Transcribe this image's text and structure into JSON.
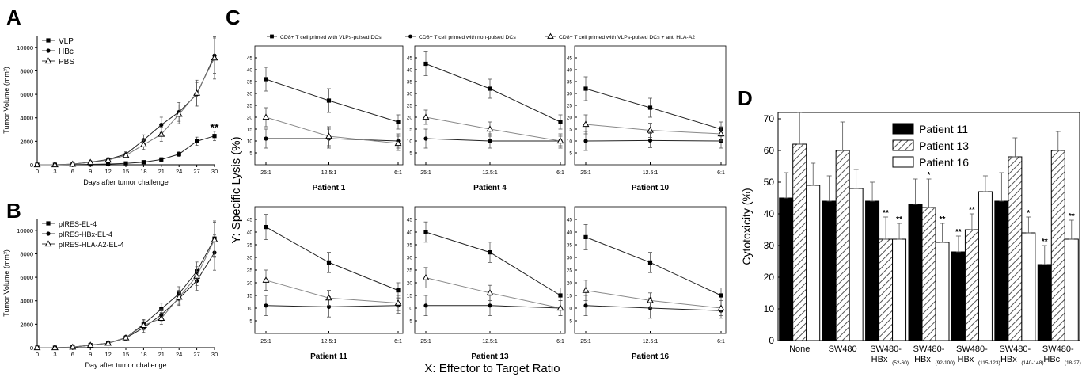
{
  "chart_data": [
    {
      "panel": "A",
      "type": "line",
      "xlabel": "Days after tumor challenge",
      "ylabel": "Tumor Volume (mm³)",
      "xlim": [
        0,
        30
      ],
      "ylim": [
        0,
        11000
      ],
      "xticks": [
        0,
        3,
        6,
        9,
        12,
        15,
        18,
        21,
        24,
        27,
        30
      ],
      "yticks": [
        0,
        2000,
        4000,
        6000,
        8000,
        10000
      ],
      "x": [
        0,
        3,
        6,
        9,
        12,
        15,
        18,
        21,
        24,
        27,
        30
      ],
      "series": [
        {
          "name": "VLP",
          "marker": "square",
          "values": [
            0,
            0,
            10,
            30,
            60,
            120,
            220,
            450,
            900,
            2000,
            2450
          ],
          "err": [
            0,
            0,
            20,
            40,
            60,
            80,
            100,
            150,
            200,
            350,
            400
          ]
        },
        {
          "name": "HBc",
          "marker": "circle",
          "values": [
            0,
            0,
            60,
            220,
            450,
            900,
            2100,
            3400,
            4500,
            6000,
            9300
          ],
          "err": [
            0,
            0,
            50,
            120,
            150,
            200,
            450,
            650,
            800,
            1000,
            1500
          ]
        },
        {
          "name": "PBS",
          "marker": "triangle",
          "values": [
            0,
            0,
            50,
            200,
            400,
            800,
            1700,
            2600,
            4300,
            6100,
            9100
          ],
          "err": [
            0,
            0,
            50,
            100,
            150,
            200,
            400,
            600,
            800,
            1100,
            1800
          ]
        }
      ],
      "annotation": "**",
      "legend": "top-left"
    },
    {
      "panel": "B",
      "type": "line",
      "xlabel": "Day after tumor challenge",
      "ylabel": "Tumor Volume (mm³)",
      "xlim": [
        0,
        30
      ],
      "ylim": [
        0,
        11000
      ],
      "xticks": [
        0,
        3,
        6,
        9,
        12,
        15,
        18,
        21,
        24,
        27,
        30
      ],
      "yticks": [
        0,
        2000,
        4000,
        6000,
        8000,
        10000
      ],
      "x": [
        0,
        3,
        6,
        9,
        12,
        15,
        18,
        21,
        24,
        27,
        30
      ],
      "series": [
        {
          "name": "pIRES-EL-4",
          "marker": "square",
          "values": [
            0,
            0,
            50,
            220,
            400,
            850,
            2000,
            3300,
            4600,
            6500,
            9300
          ],
          "err": [
            0,
            0,
            40,
            100,
            150,
            200,
            400,
            500,
            600,
            800,
            1500
          ]
        },
        {
          "name": "pIRES-HBx-EL-4",
          "marker": "circle",
          "values": [
            0,
            0,
            40,
            200,
            380,
            820,
            1700,
            2800,
            4200,
            5700,
            8100
          ],
          "err": [
            0,
            0,
            40,
            100,
            150,
            200,
            400,
            500,
            600,
            800,
            1500
          ]
        },
        {
          "name": "pIRES-HLA-A2-EL-4",
          "marker": "triangle",
          "values": [
            0,
            0,
            45,
            210,
            390,
            840,
            1900,
            2500,
            4300,
            6100,
            9200
          ],
          "err": [
            0,
            0,
            40,
            100,
            150,
            200,
            400,
            500,
            600,
            800,
            1500
          ]
        }
      ],
      "legend": "top-left"
    },
    {
      "panel": "C",
      "type": "line",
      "ylabel": "Y: Specific Lysis (%)",
      "xlabel": "X: Effector to Target Ratio",
      "categories": [
        "25:1",
        "12.5:1",
        "6:1"
      ],
      "ylim": [
        0,
        50
      ],
      "yticks": [
        5,
        10,
        15,
        20,
        25,
        30,
        35,
        40,
        45
      ],
      "legend_entries": [
        "CD8+ T cell primed with VLPs-pulsed DCs",
        "CD8+ T cell primed with non-pulsed DCs",
        "CD8+ T cell primed with VLPs-pulsed DCs + anti HLA-A2"
      ],
      "subplots": [
        {
          "title": "Patient 1",
          "series": [
            {
              "values": [
                36,
                27,
                18
              ],
              "err": [
                5,
                5,
                3
              ]
            },
            {
              "values": [
                11,
                11,
                10
              ],
              "err": [
                4,
                4,
                3
              ]
            },
            {
              "values": [
                20,
                12,
                9
              ],
              "err": [
                4,
                4,
                3
              ]
            }
          ]
        },
        {
          "title": "Patient 4",
          "series": [
            {
              "values": [
                42.5,
                32,
                18
              ],
              "err": [
                5,
                4,
                3
              ]
            },
            {
              "values": [
                11,
                10,
                10
              ],
              "err": [
                4,
                3,
                3
              ]
            },
            {
              "values": [
                20,
                15,
                10
              ],
              "err": [
                3,
                3,
                2
              ]
            }
          ]
        },
        {
          "title": "Patient 10",
          "series": [
            {
              "values": [
                32,
                24,
                15
              ],
              "err": [
                5,
                4,
                3
              ]
            },
            {
              "values": [
                10,
                10.2,
                10
              ],
              "err": [
                4,
                3,
                3
              ]
            },
            {
              "values": [
                17,
                14.5,
                13
              ],
              "err": [
                4,
                3,
                3
              ]
            }
          ]
        },
        {
          "title": "Patient 11",
          "series": [
            {
              "values": [
                42,
                28,
                17
              ],
              "err": [
                5,
                4,
                3
              ]
            },
            {
              "values": [
                11,
                10.5,
                11
              ],
              "err": [
                4,
                4,
                3
              ]
            },
            {
              "values": [
                21,
                14,
                12
              ],
              "err": [
                4,
                3,
                3
              ]
            }
          ]
        },
        {
          "title": "Patient 13",
          "series": [
            {
              "values": [
                40,
                32,
                15
              ],
              "err": [
                4,
                4,
                3
              ]
            },
            {
              "values": [
                11,
                11,
                10
              ],
              "err": [
                4,
                4,
                3
              ]
            },
            {
              "values": [
                22,
                16,
                10
              ],
              "err": [
                4,
                3,
                3
              ]
            }
          ]
        },
        {
          "title": "Patient 16",
          "series": [
            {
              "values": [
                38,
                28,
                15
              ],
              "err": [
                5,
                4,
                3
              ]
            },
            {
              "values": [
                11,
                10,
                9
              ],
              "err": [
                4,
                4,
                3
              ]
            },
            {
              "values": [
                17,
                13,
                10
              ],
              "err": [
                4,
                3,
                3
              ]
            }
          ]
        }
      ]
    },
    {
      "panel": "D",
      "type": "bar",
      "ylabel": "Cytotoxicity (%)",
      "ylim": [
        0,
        72
      ],
      "yticks": [
        0,
        10,
        20,
        30,
        40,
        50,
        60,
        70
      ],
      "categories": [
        {
          "line1": "None",
          "line2": "",
          "sub": ""
        },
        {
          "line1": "SW480",
          "line2": "",
          "sub": ""
        },
        {
          "line1": "SW480-",
          "line2": "HBx",
          "sub": "(52-60)"
        },
        {
          "line1": "SW480-",
          "line2": "HBx",
          "sub": "(92-100)"
        },
        {
          "line1": "SW480-",
          "line2": "HBx",
          "sub": "(115-123)"
        },
        {
          "line1": "SW480-",
          "line2": "HBx",
          "sub": "(140-148)"
        },
        {
          "line1": "SW480-",
          "line2": "HBc",
          "sub": "(18-27)"
        }
      ],
      "series": [
        {
          "name": "Patient 11",
          "fill": "#000000",
          "values": [
            45,
            44,
            44,
            43,
            28,
            44,
            24
          ],
          "err": [
            8,
            8,
            6,
            8,
            5,
            9,
            6
          ],
          "stars": [
            "",
            "",
            "",
            "",
            "**",
            "",
            "**"
          ]
        },
        {
          "name": "Patient 13",
          "fill": "hatch",
          "values": [
            62,
            60,
            32,
            42,
            35,
            58,
            60
          ],
          "err": [
            10,
            9,
            7,
            9,
            5,
            6,
            6
          ],
          "stars": [
            "",
            "",
            "**",
            "*",
            "**",
            "",
            ""
          ]
        },
        {
          "name": "Patient 16",
          "fill": "#ffffff",
          "values": [
            49,
            48,
            32,
            31,
            47,
            34,
            32
          ],
          "err": [
            7,
            6,
            5,
            6,
            5,
            5,
            6
          ],
          "stars": [
            "",
            "",
            "**",
            "**",
            "",
            "*",
            "**"
          ]
        }
      ],
      "legend": "top-right"
    }
  ]
}
